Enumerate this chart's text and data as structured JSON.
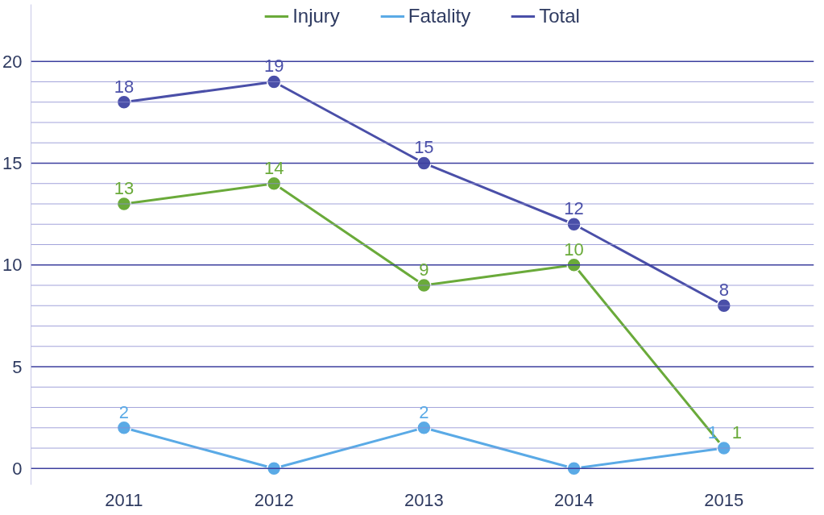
{
  "chart_data": {
    "type": "line",
    "categories": [
      "2011",
      "2012",
      "2013",
      "2014",
      "2015"
    ],
    "series": [
      {
        "name": "Injury",
        "color": "#6aaa3a",
        "values": [
          13,
          14,
          9,
          10,
          1
        ],
        "value_labels": [
          "13",
          "14",
          "9",
          "10",
          "1"
        ]
      },
      {
        "name": "Fatality",
        "color": "#5aaae6",
        "values": [
          2,
          0,
          2,
          0,
          1
        ],
        "value_labels": [
          "2",
          null,
          "2",
          null,
          "1"
        ]
      },
      {
        "name": "Total",
        "color": "#4a4fa8",
        "values": [
          18,
          19,
          15,
          12,
          8
        ],
        "value_labels": [
          "18",
          "19",
          "15",
          "12",
          "8"
        ]
      }
    ],
    "ylim": [
      -0.8,
      22.8
    ],
    "yticks": [
      0,
      {
        "value": 1,
        "label": null
      },
      {
        "value": 2,
        "label": null
      },
      {
        "value": 3,
        "label": null
      },
      {
        "value": 4,
        "label": null
      },
      5,
      {
        "value": 6,
        "label": null
      },
      {
        "value": 7,
        "label": null
      },
      {
        "value": 8,
        "label": null
      },
      {
        "value": 9,
        "label": null
      },
      10,
      {
        "value": 11,
        "label": null
      },
      {
        "value": 12,
        "label": null
      },
      {
        "value": 13,
        "label": null
      },
      {
        "value": 14,
        "label": null
      },
      15,
      {
        "value": 16,
        "label": null
      },
      {
        "value": 17,
        "label": null
      },
      {
        "value": 18,
        "label": null
      },
      {
        "value": 19,
        "label": null
      },
      20
    ],
    "grid": "y",
    "legend": "top",
    "marker": "circle",
    "line_style": "solid"
  }
}
